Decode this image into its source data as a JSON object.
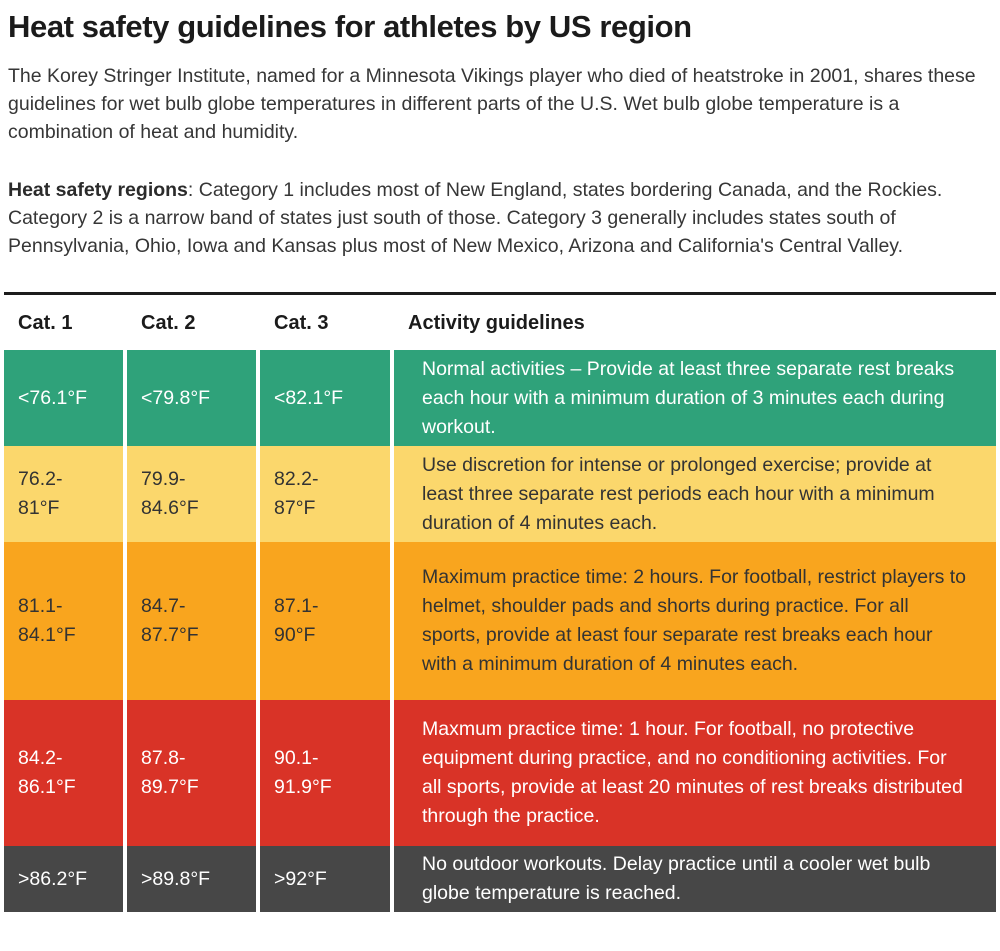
{
  "page": {
    "title": "Heat safety guidelines for athletes by US region",
    "intro": "The Korey Stringer Institute, named for a Minnesota Vikings player who died of heatstroke in 2001, shares these guidelines for wet bulb globe temperatures in different parts of the U.S. Wet bulb globe temperature is a combination of heat and humidity.",
    "regions_lead": "Heat safety regions",
    "regions_rest": ": Category 1 includes most of New England, states bordering Canada, and the Rockies. Category 2 is a narrow band of states just south of those. Category 3 generally includes states south of Pennsylvania, Ohio, Iowa and Kansas plus most of New Mexico, Arizona and California's Central Valley."
  },
  "table": {
    "headers": {
      "cat1": "Cat. 1",
      "cat2": "Cat. 2",
      "cat3": "Cat. 3",
      "guidelines": "Activity guidelines"
    },
    "rows": [
      {
        "cat1": "<76.1°F",
        "cat2": "<79.8°F",
        "cat3": "<82.1°F",
        "guideline": "Normal activities – Provide at least three separate rest breaks each hour with a minimum duration of 3 minutes each during workout.",
        "bg": "#2fa27a",
        "text_color": "#ffffff"
      },
      {
        "cat1": "76.2-\n81°F",
        "cat2": "79.9-\n84.6°F",
        "cat3": "82.2-\n87°F",
        "guideline": "Use discretion for intense or prolonged exercise; provide at least three separate rest periods each hour with a minimum duration of 4 minutes each.",
        "bg": "#fbd76c",
        "text_color": "#333333"
      },
      {
        "cat1": "81.1-\n84.1°F",
        "cat2": "84.7-\n87.7°F",
        "cat3": "87.1-\n90°F",
        "guideline": "Maximum practice time: 2 hours. For football, restrict players to helmet, shoulder pads and shorts during practice. For all sports, provide at least four separate rest breaks each hour with a minimum duration of 4 minutes each.",
        "bg": "#f9a51e",
        "text_color": "#333333"
      },
      {
        "cat1": "84.2-\n86.1°F",
        "cat2": "87.8-\n89.7°F",
        "cat3": "90.1-\n91.9°F",
        "guideline": "Maxmum practice time: 1 hour. For football, no protective equipment during practice, and no conditioning activities. For all sports, provide at least 20 minutes of rest breaks distributed through the practice.",
        "bg": "#d93327",
        "text_color": "#ffffff"
      },
      {
        "cat1": ">86.2°F",
        "cat2": ">89.8°F",
        "cat3": ">92°F",
        "guideline": "No outdoor workouts. Delay practice until a cooler wet bulb globe temperature is reached.",
        "bg": "#474747",
        "text_color": "#ffffff"
      }
    ]
  },
  "chart_data": {
    "type": "table",
    "title": "Heat safety guidelines for athletes by US region",
    "columns": [
      "Cat. 1",
      "Cat. 2",
      "Cat. 3",
      "Activity guidelines"
    ],
    "rows": [
      [
        "<76.1°F",
        "<79.8°F",
        "<82.1°F",
        "Normal activities – Provide at least three separate rest breaks each hour with a minimum duration of 3 minutes each during workout."
      ],
      [
        "76.2-81°F",
        "79.9-84.6°F",
        "82.2-87°F",
        "Use discretion for intense or prolonged exercise; provide at least three separate rest periods each hour with a minimum duration of 4 minutes each."
      ],
      [
        "81.1-84.1°F",
        "84.7-87.7°F",
        "87.1-90°F",
        "Maximum practice time: 2 hours. For football, restrict players to helmet, shoulder pads and shorts during practice. For all sports, provide at least four separate rest breaks each hour with a minimum duration of 4 minutes each."
      ],
      [
        "84.2-86.1°F",
        "87.8-89.7°F",
        "90.1-91.9°F",
        "Maxmum practice time: 1 hour. For football, no protective equipment during practice, and no conditioning activities. For all sports, provide at least 20 minutes of rest breaks distributed through the practice."
      ],
      [
        ">86.2°F",
        ">89.8°F",
        ">92°F",
        "No outdoor workouts. Delay practice until a cooler wet bulb globe temperature is reached."
      ]
    ],
    "row_colors": [
      "#2fa27a",
      "#fbd76c",
      "#f9a51e",
      "#d93327",
      "#474747"
    ],
    "row_text_colors": [
      "#ffffff",
      "#333333",
      "#333333",
      "#ffffff",
      "#ffffff"
    ],
    "layout_hints": {
      "grid": "white 4px vertical separators between columns",
      "header_rule": "dark rule above header row"
    }
  }
}
